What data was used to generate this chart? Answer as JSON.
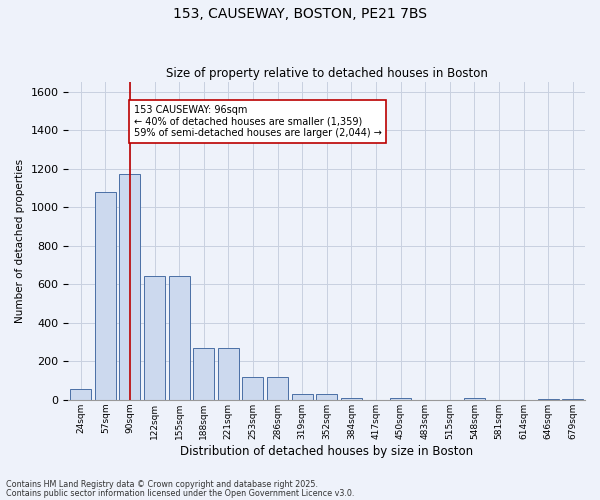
{
  "title": "153, CAUSEWAY, BOSTON, PE21 7BS",
  "subtitle": "Size of property relative to detached houses in Boston",
  "xlabel": "Distribution of detached houses by size in Boston",
  "ylabel": "Number of detached properties",
  "categories": [
    "24sqm",
    "57sqm",
    "90sqm",
    "122sqm",
    "155sqm",
    "188sqm",
    "221sqm",
    "253sqm",
    "286sqm",
    "319sqm",
    "352sqm",
    "384sqm",
    "417sqm",
    "450sqm",
    "483sqm",
    "515sqm",
    "548sqm",
    "581sqm",
    "614sqm",
    "646sqm",
    "679sqm"
  ],
  "values": [
    55,
    1080,
    1175,
    645,
    645,
    270,
    270,
    120,
    120,
    30,
    30,
    10,
    0,
    10,
    0,
    0,
    10,
    0,
    0,
    5,
    5
  ],
  "bar_color": "#ccd9ee",
  "bar_edge_color": "#4a6fa5",
  "grid_color": "#c8d0e0",
  "vline_x": 2,
  "vline_color": "#bb0000",
  "annotation_text": "153 CAUSEWAY: 96sqm\n← 40% of detached houses are smaller (1,359)\n59% of semi-detached houses are larger (2,044) →",
  "annotation_box_color": "#ffffff",
  "annotation_box_edge": "#bb0000",
  "ylim": [
    0,
    1650
  ],
  "yticks": [
    0,
    200,
    400,
    600,
    800,
    1000,
    1200,
    1400,
    1600
  ],
  "footer1": "Contains HM Land Registry data © Crown copyright and database right 2025.",
  "footer2": "Contains public sector information licensed under the Open Government Licence v3.0.",
  "bg_color": "#eef2fa"
}
